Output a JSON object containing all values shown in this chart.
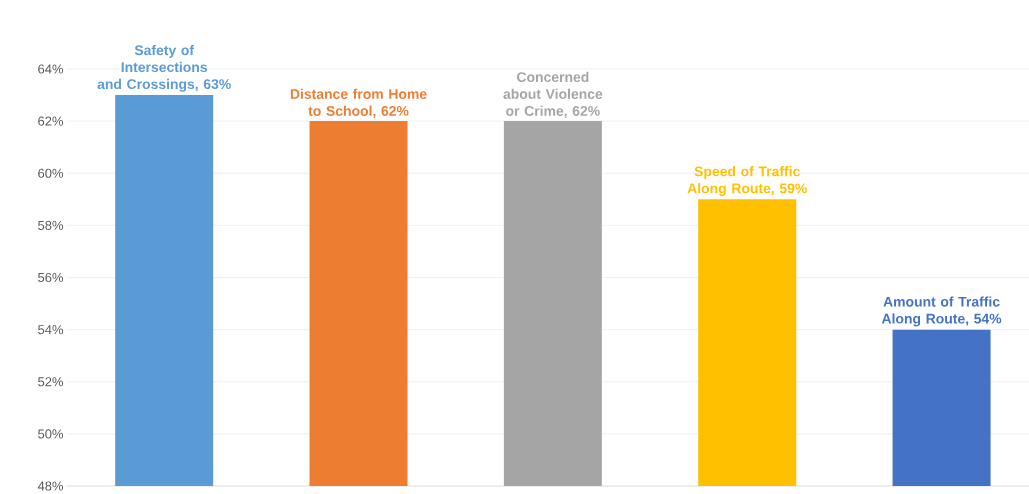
{
  "chart_data": {
    "type": "bar",
    "categories": [
      null,
      null,
      null,
      null,
      null
    ],
    "values": [
      63,
      62,
      62,
      59,
      54
    ],
    "colors": [
      "#5b9bd5",
      "#ed7d31",
      "#a5a5a5",
      "#ffc000",
      "#4472c4"
    ],
    "value_labels": [
      "Safety of Intersections and Crossings, 63%",
      "Distance  from Home to School, 62%",
      "Concerned about Violence or Crime, 62%",
      "Speed of Traffic Along Route, 59%",
      "Amount of Traffic Along Route, 54%"
    ],
    "ylim": [
      48,
      64
    ],
    "yticks": [
      {
        "value": 48,
        "label": "48%"
      },
      {
        "value": 50,
        "label": "50%"
      },
      {
        "value": 52,
        "label": "52%"
      },
      {
        "value": 54,
        "label": "54%"
      },
      {
        "value": 56,
        "label": "56%"
      },
      {
        "value": 58,
        "label": "58%"
      },
      {
        "value": 60,
        "label": "60%"
      },
      {
        "value": 62,
        "label": "62%"
      },
      {
        "value": 64,
        "label": "64%"
      }
    ],
    "grid": "y"
  }
}
